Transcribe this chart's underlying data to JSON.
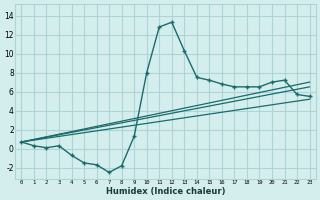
{
  "xlabel": "Humidex (Indice chaleur)",
  "bg_color": "#d4eeee",
  "grid_color": "#aed4d4",
  "line_color": "#1a6b6b",
  "xlim": [
    -0.5,
    23.5
  ],
  "ylim": [
    -3.2,
    15.2
  ],
  "xticks": [
    0,
    1,
    2,
    3,
    4,
    5,
    6,
    7,
    8,
    9,
    10,
    11,
    12,
    13,
    14,
    15,
    16,
    17,
    18,
    19,
    20,
    21,
    22,
    23
  ],
  "yticks": [
    -2,
    0,
    2,
    4,
    6,
    8,
    10,
    12,
    14
  ],
  "main_x": [
    0,
    1,
    2,
    3,
    4,
    5,
    6,
    7,
    8,
    9,
    10,
    11,
    12,
    13,
    14,
    15,
    16,
    17,
    18,
    19,
    20,
    21,
    22,
    23
  ],
  "main_y": [
    0.7,
    0.3,
    0.1,
    0.3,
    -0.7,
    -1.5,
    -1.7,
    -2.5,
    -1.8,
    1.3,
    8.0,
    12.8,
    13.3,
    10.3,
    7.5,
    7.2,
    6.8,
    6.5,
    6.5,
    6.5,
    7.0,
    7.2,
    5.7,
    5.5
  ],
  "trend1_x": [
    0,
    23
  ],
  "trend1_y": [
    0.7,
    6.5
  ],
  "trend2_x": [
    0,
    23
  ],
  "trend2_y": [
    0.7,
    5.2
  ],
  "trend3_x": [
    0,
    23
  ],
  "trend3_y": [
    0.7,
    7.0
  ]
}
